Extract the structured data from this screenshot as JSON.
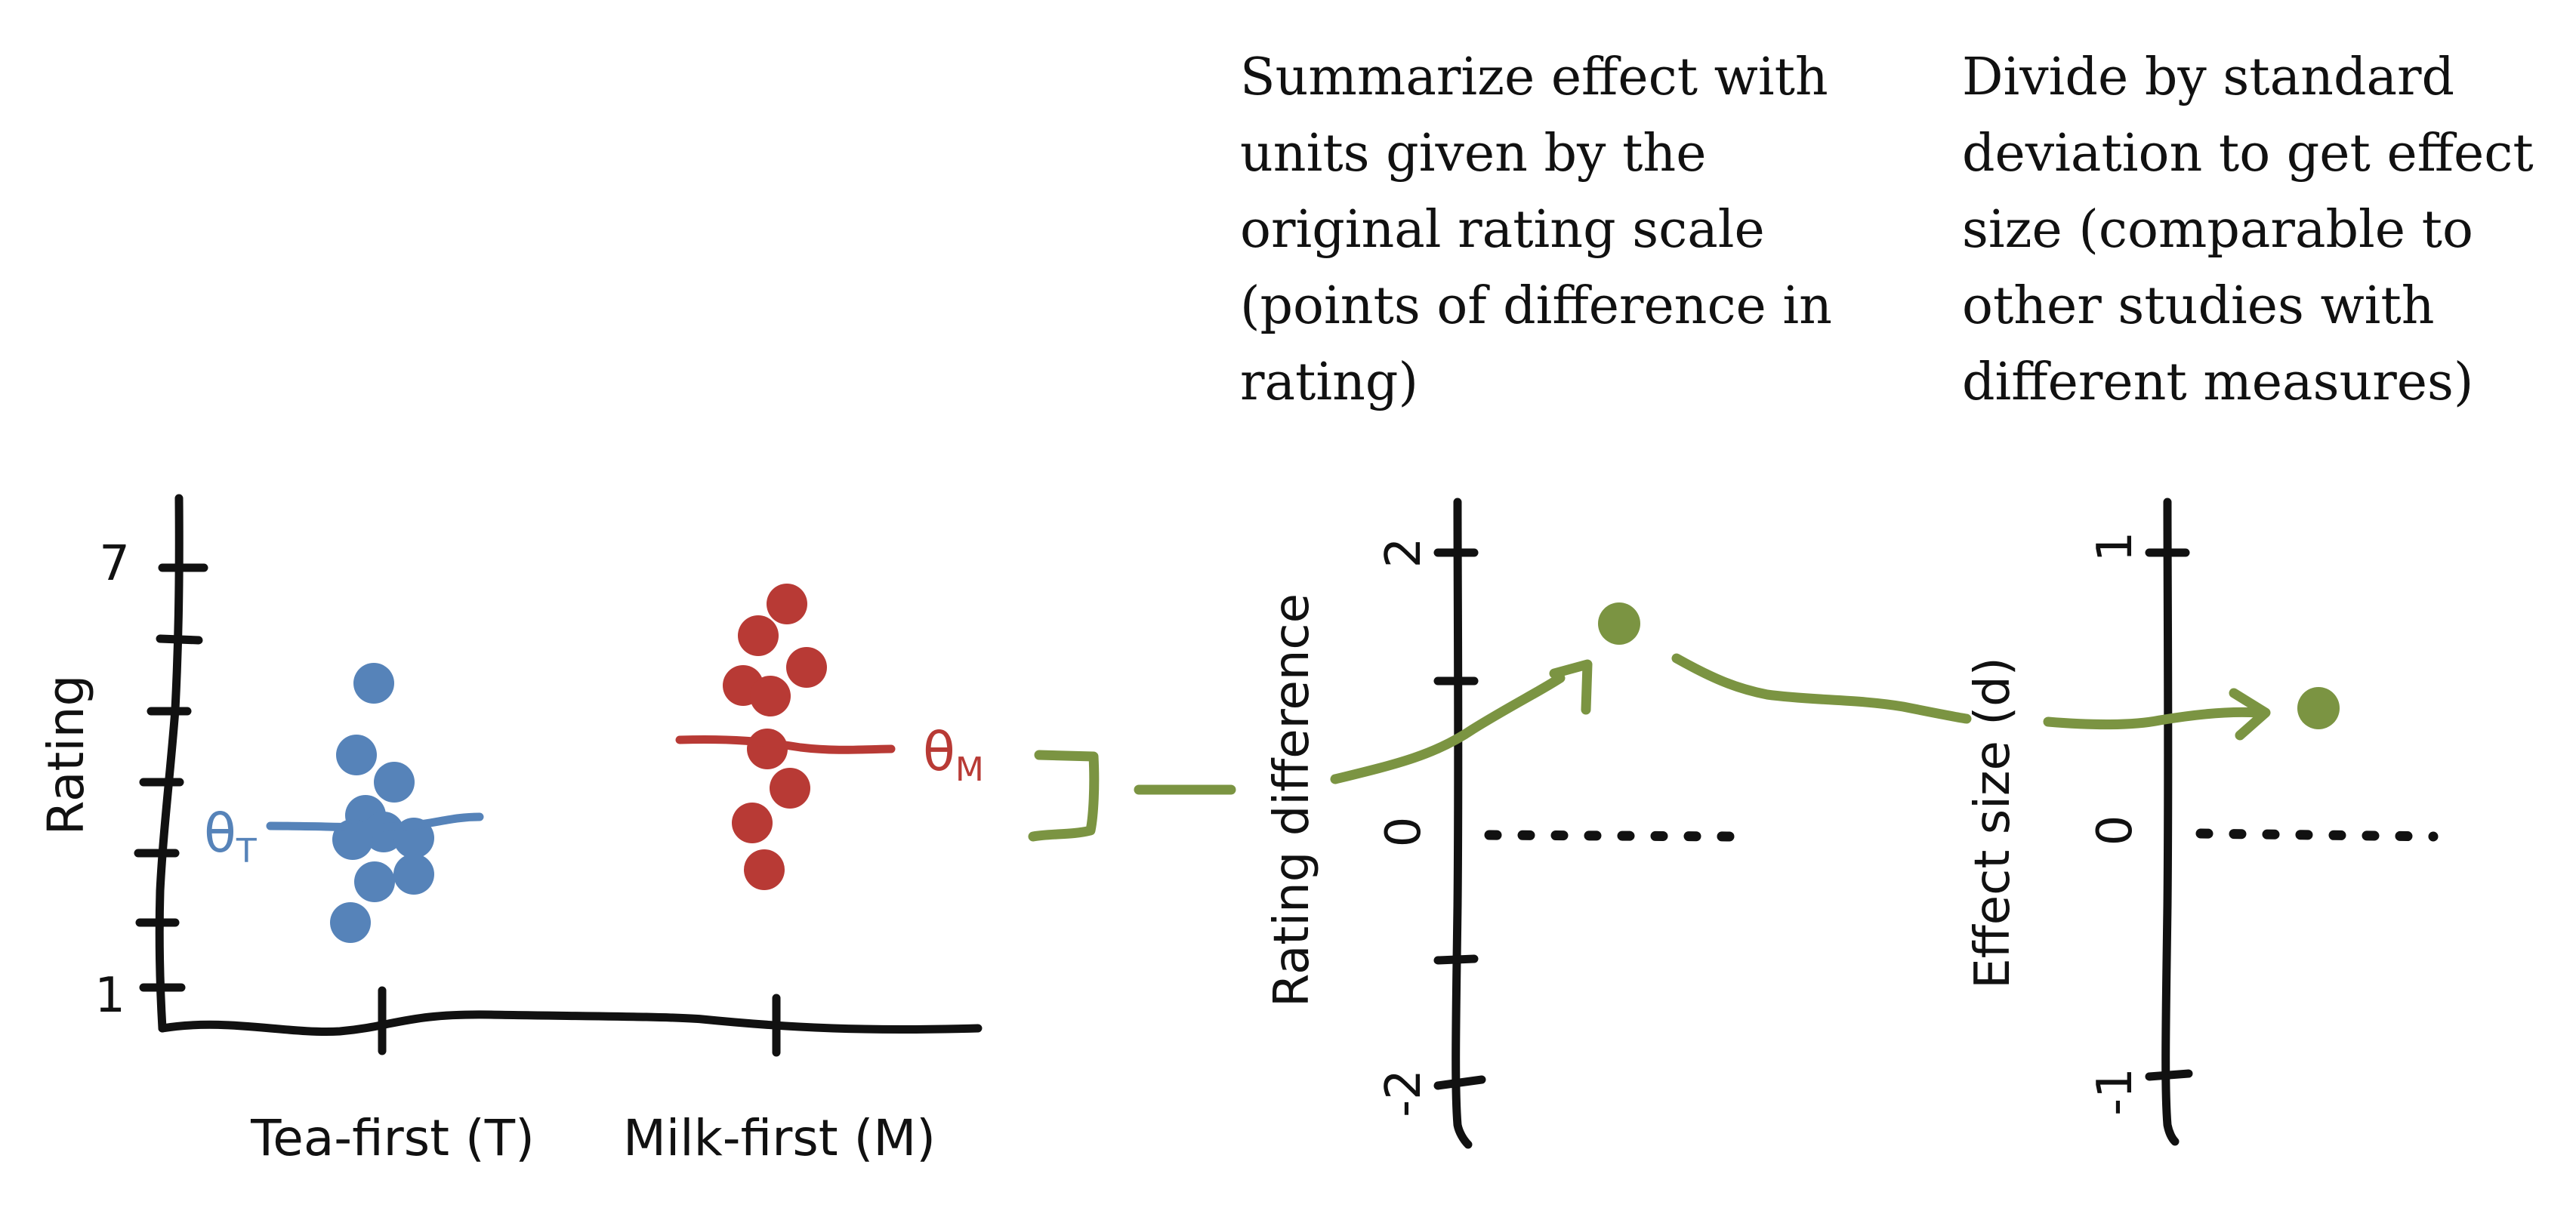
{
  "captions": {
    "raw_units": "Summarize effect with\nunits given by the\noriginal rating scale\n(points of difference in\nrating)",
    "effect_size": "Divide by standard\ndeviation to get effect\nsize (comparable to\nother studies with\ndifferent measures)"
  },
  "left_panel": {
    "y_label": "Rating",
    "y_ticks": [
      "7",
      "1"
    ],
    "groups": [
      {
        "label": "Tea-first (T)",
        "param": "θ",
        "param_sub": "T",
        "color": "#5683b9"
      },
      {
        "label": "Milk-first (M)",
        "param": "θ",
        "param_sub": "M",
        "color": "#b83a35"
      }
    ]
  },
  "middle_panel": {
    "y_label": "Rating difference",
    "y_ticks": [
      "2",
      "0",
      "-2"
    ]
  },
  "right_panel": {
    "y_label": "Effect size (d)",
    "y_ticks": [
      "1",
      "0",
      "-1"
    ]
  },
  "colors": {
    "ink": "#111111",
    "tea": "#5683b9",
    "milk": "#b83a35",
    "effect": "#7b9442"
  }
}
